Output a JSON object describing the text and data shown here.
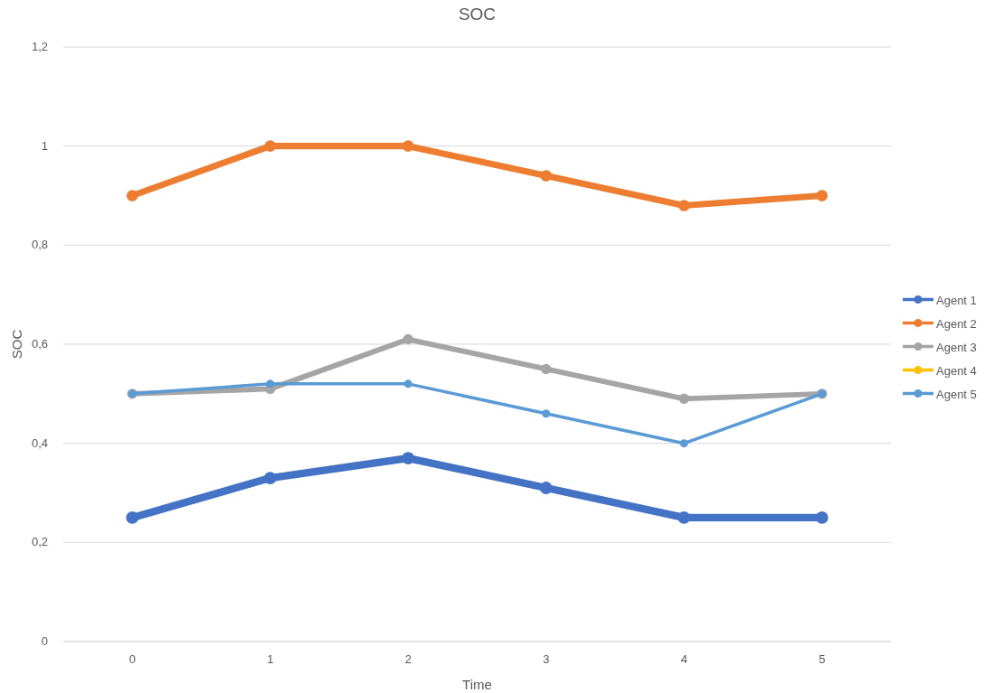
{
  "chart_data": {
    "type": "line",
    "title": "SOC",
    "xlabel": "Time",
    "ylabel": "SOC",
    "categories": [
      "0",
      "1",
      "2",
      "3",
      "4",
      "5"
    ],
    "series": [
      {
        "name": "Agent 1",
        "color": "#4472c4",
        "values": [
          0.25,
          0.33,
          0.37,
          0.31,
          0.25,
          0.25
        ]
      },
      {
        "name": "Agent 2",
        "color": "#ed7d31",
        "values": [
          0.9,
          1,
          1,
          0.94,
          0.88,
          0.9
        ]
      },
      {
        "name": "Agent 3",
        "color": "#a5a5a5",
        "values": [
          0.5,
          0.51,
          0.61,
          0.55,
          0.49,
          0.5
        ]
      },
      {
        "name": "Agent 4",
        "color": "#ffc000",
        "values": [
          null,
          null,
          null,
          null,
          null,
          null
        ]
      },
      {
        "name": "Agent 5",
        "color": "#5b9bd5",
        "values": [
          0.5,
          0.52,
          0.52,
          0.46,
          0.4,
          0.5
        ]
      }
    ],
    "ylim": [
      0,
      1.2
    ],
    "yticks": [
      0,
      {
        "value": 0.2,
        "label": "0,2"
      },
      {
        "value": 0.4,
        "label": "0,4"
      },
      {
        "value": 0.6,
        "label": "0,6"
      },
      {
        "value": 0.8,
        "label": "0,8"
      },
      1,
      {
        "value": 1.2,
        "label": "1,2"
      }
    ],
    "grid": "y",
    "legend": "right",
    "marker": "circle",
    "line_style": "solid"
  }
}
